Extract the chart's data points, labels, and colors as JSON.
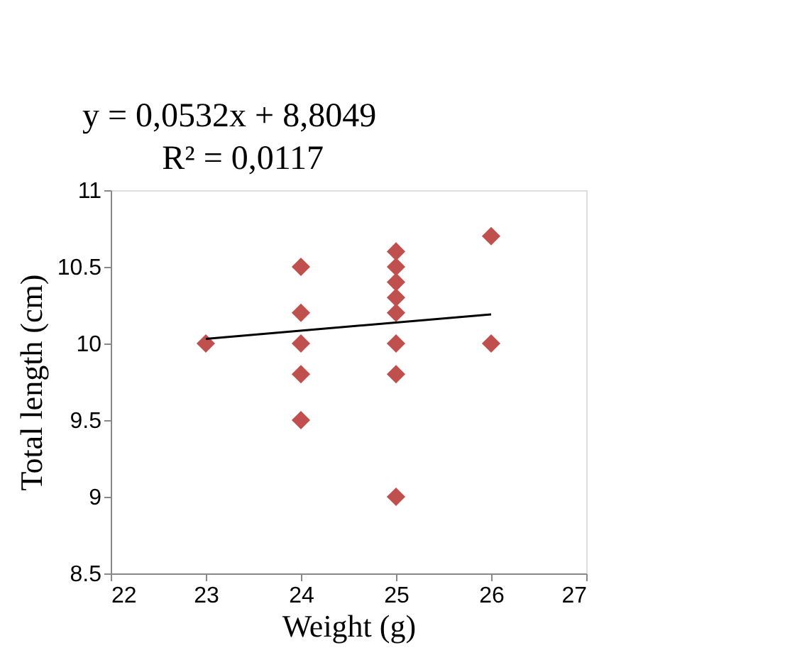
{
  "chart_data": {
    "type": "scatter",
    "xlabel": "Weight (g)",
    "ylabel": "Total length (cm)",
    "annotations": [
      "y = 0,0532x + 8,8049",
      "R² = 0,0117"
    ],
    "series": [
      {
        "color": "#c0504d",
        "marker": "diamond",
        "x": [
          23,
          24,
          24,
          24,
          24,
          24,
          25,
          25,
          25,
          25,
          25,
          25,
          25,
          25,
          26,
          26
        ],
        "values": [
          10,
          10.5,
          10.2,
          10,
          9.8,
          9.5,
          10.6,
          10.5,
          10.4,
          10.3,
          10.2,
          10,
          9.8,
          9,
          10.7,
          10
        ]
      },
      {
        "type": "line",
        "color": "#000000",
        "x": [
          23,
          26
        ],
        "values": [
          10.03,
          10.19
        ]
      }
    ],
    "xlim": [
      22,
      27
    ],
    "xticks": [
      22,
      23,
      24,
      25,
      26,
      27
    ],
    "ylim": [
      8.5,
      11
    ],
    "yticks": [
      8.5,
      9,
      9.5,
      10,
      10.5,
      11
    ],
    "grid": false
  }
}
